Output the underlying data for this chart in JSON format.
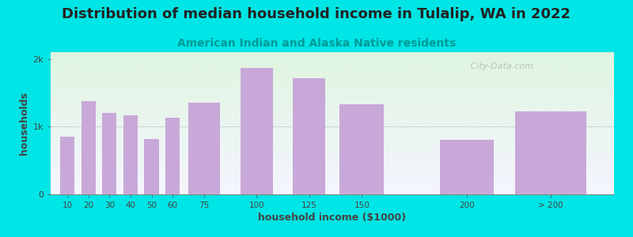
{
  "title": "Distribution of median household income in Tulalip, WA in 2022",
  "subtitle": "American Indian and Alaska Native residents",
  "xlabel": "household income ($1000)",
  "ylabel": "households",
  "categories": [
    "10",
    "20",
    "30",
    "40",
    "50",
    "60",
    "75",
    "100",
    "125",
    "150",
    "200",
    "> 200"
  ],
  "x_positions": [
    10,
    20,
    30,
    40,
    50,
    60,
    75,
    100,
    125,
    150,
    200,
    240
  ],
  "bar_widths": [
    8,
    8,
    8,
    8,
    8,
    8,
    18,
    18,
    18,
    25,
    30,
    40
  ],
  "values": [
    850,
    1380,
    1200,
    1170,
    820,
    1130,
    1350,
    1870,
    1720,
    1330,
    800,
    1230
  ],
  "bar_color": "#c8a8d8",
  "background_color": "#00e5e5",
  "plot_bg_color_tl": "#dff5e0",
  "plot_bg_color_br": "#f5f5ff",
  "title_fontsize": 13,
  "subtitle_fontsize": 10,
  "axis_label_fontsize": 9,
  "ytick_labels": [
    "0",
    "1k",
    "2k"
  ],
  "ytick_values": [
    0,
    1000,
    2000
  ],
  "ylim": [
    0,
    2100
  ],
  "xlim": [
    2,
    270
  ],
  "watermark": "   City-Data.com"
}
